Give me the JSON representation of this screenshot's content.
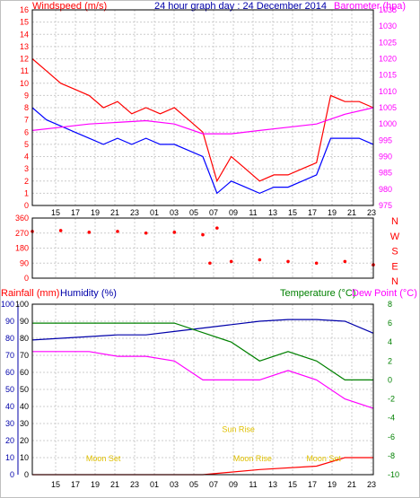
{
  "chart_data": [
    {
      "type": "line",
      "title": "24 hour graph day : 24 December 2014",
      "left_label": "Windspeed (m/s)",
      "right_label": "Barometer (hpa)",
      "y_left_range": [
        0,
        16
      ],
      "y_left_ticks": [
        "0",
        "1",
        "2",
        "3",
        "4",
        "5",
        "6",
        "7",
        "8",
        "9",
        "10",
        "11",
        "12",
        "13",
        "14",
        "15",
        "16"
      ],
      "y_right_range": [
        975,
        1035
      ],
      "y_right_ticks": [
        "975",
        "980",
        "985",
        "990",
        "995",
        "1000",
        "1005",
        "1010",
        "1015",
        "1020",
        "1025",
        "1030",
        "1035"
      ],
      "x_ticks": [
        "15",
        "17",
        "19",
        "21",
        "23",
        "01",
        "03",
        "05",
        "07",
        "09",
        "11",
        "13",
        "15",
        "17",
        "19",
        "21",
        "23"
      ],
      "grid": true,
      "colors": {
        "gust": "#ff0000",
        "speed": "#0000ff",
        "barometer": "#ff00ff"
      },
      "series": [
        {
          "key": "gust",
          "color": "#ff0000",
          "x": [
            14,
            15,
            16,
            17,
            18,
            19,
            20,
            21,
            22,
            23,
            24,
            25,
            26,
            27,
            28,
            29,
            30,
            31,
            32,
            33,
            34,
            35,
            36,
            37,
            38
          ],
          "values": [
            12,
            11,
            10,
            9.5,
            9,
            8,
            8.5,
            7.5,
            8,
            7.5,
            8,
            7,
            6,
            2,
            4,
            3,
            2,
            2.5,
            2.5,
            3,
            3.5,
            9,
            8.5,
            8.5,
            8
          ]
        },
        {
          "key": "speed",
          "color": "#0000ff",
          "x": [
            14,
            15,
            16,
            17,
            18,
            19,
            20,
            21,
            22,
            23,
            24,
            25,
            26,
            27,
            28,
            29,
            30,
            31,
            32,
            33,
            34,
            35,
            36,
            37,
            38
          ],
          "values": [
            8,
            7,
            6.5,
            6,
            5.5,
            5,
            5.5,
            5,
            5.5,
            5,
            5,
            4.5,
            4,
            1,
            2,
            1.5,
            1,
            1.5,
            1.5,
            2,
            2.5,
            5.5,
            5.5,
            5.5,
            5
          ]
        },
        {
          "key": "barometer",
          "color": "#ff00ff",
          "x": [
            14,
            16,
            18,
            20,
            22,
            24,
            26,
            28,
            30,
            32,
            34,
            36,
            38
          ],
          "values": [
            998,
            999,
            1000,
            1000.5,
            1001,
            1000,
            997,
            997,
            998,
            999,
            1000,
            1003,
            1005
          ]
        }
      ]
    },
    {
      "type": "scatter",
      "y_range": [
        0,
        360
      ],
      "y_ticks": [
        "0",
        "90",
        "180",
        "270",
        "360"
      ],
      "compass_labels": [
        "N",
        "W",
        "S",
        "E",
        "N"
      ],
      "x_ticks": [
        "15",
        "17",
        "19",
        "21",
        "23",
        "01",
        "03",
        "05",
        "07",
        "09",
        "11",
        "13",
        "15",
        "17",
        "19",
        "21",
        "23"
      ],
      "color": "#ff0000",
      "series": [
        {
          "key": "direction",
          "x": [
            14,
            16,
            18,
            20,
            22,
            24,
            26,
            26.5,
            27,
            28,
            30,
            32,
            34,
            36,
            38
          ],
          "values": [
            280,
            285,
            275,
            280,
            270,
            275,
            260,
            90,
            300,
            100,
            110,
            100,
            90,
            100,
            80
          ]
        }
      ]
    },
    {
      "type": "line",
      "left_labels": [
        "Rainfall (mm)",
        "Humidity (%)"
      ],
      "right_labels": [
        "Temperature (°C)",
        "Dew Point (°C)"
      ],
      "y_rain_range": [
        0,
        100
      ],
      "y_rain_ticks": [
        "0",
        "10",
        "20",
        "30",
        "40",
        "50",
        "60",
        "70",
        "80",
        "90",
        "100"
      ],
      "y_hum_range": [
        0,
        100
      ],
      "y_hum_ticks": [
        "0",
        "10",
        "20",
        "30",
        "40",
        "50",
        "60",
        "70",
        "80",
        "90",
        "100"
      ],
      "y_temp_range": [
        -10,
        8
      ],
      "y_temp_ticks": [
        "-10",
        "-8",
        "-6",
        "-4",
        "-2",
        "0",
        "2",
        "4",
        "6",
        "8"
      ],
      "x_ticks": [
        "15",
        "17",
        "19",
        "21",
        "23",
        "01",
        "03",
        "05",
        "07",
        "09",
        "11",
        "13",
        "15",
        "17",
        "19",
        "21",
        "23"
      ],
      "annotations": [
        {
          "text": "Moon Set",
          "x": 19,
          "y": 8
        },
        {
          "text": "Sun Rise",
          "x": 28.5,
          "y": 25
        },
        {
          "text": "Moon Rise",
          "x": 29.5,
          "y": 8
        },
        {
          "text": "Moon Set",
          "x": 34.5,
          "y": 8
        }
      ],
      "series": [
        {
          "key": "humidity",
          "color": "#0000aa",
          "x": [
            14,
            16,
            18,
            20,
            22,
            24,
            26,
            28,
            30,
            32,
            34,
            36,
            38
          ],
          "values": [
            79,
            80,
            81,
            82,
            82,
            84,
            86,
            88,
            90,
            91,
            91,
            90,
            83
          ]
        },
        {
          "key": "temperature",
          "color": "#008000",
          "x": [
            14,
            16,
            18,
            20,
            22,
            24,
            26,
            28,
            30,
            32,
            34,
            36,
            38
          ],
          "values": [
            6,
            6,
            6,
            6,
            6,
            6,
            5,
            4,
            2,
            3,
            2,
            0,
            0
          ]
        },
        {
          "key": "dewpoint",
          "color": "#ff00ff",
          "x": [
            14,
            16,
            18,
            20,
            22,
            24,
            26,
            28,
            30,
            32,
            34,
            36,
            38
          ],
          "values": [
            3,
            3,
            3,
            2.5,
            2.5,
            2,
            0,
            0,
            0,
            1,
            0,
            -2,
            -3
          ]
        },
        {
          "key": "rainfall",
          "color": "#ff0000",
          "x": [
            14,
            20,
            26,
            30,
            34,
            36,
            38
          ],
          "values": [
            0,
            0,
            0,
            3,
            5,
            10,
            10
          ]
        }
      ]
    }
  ]
}
